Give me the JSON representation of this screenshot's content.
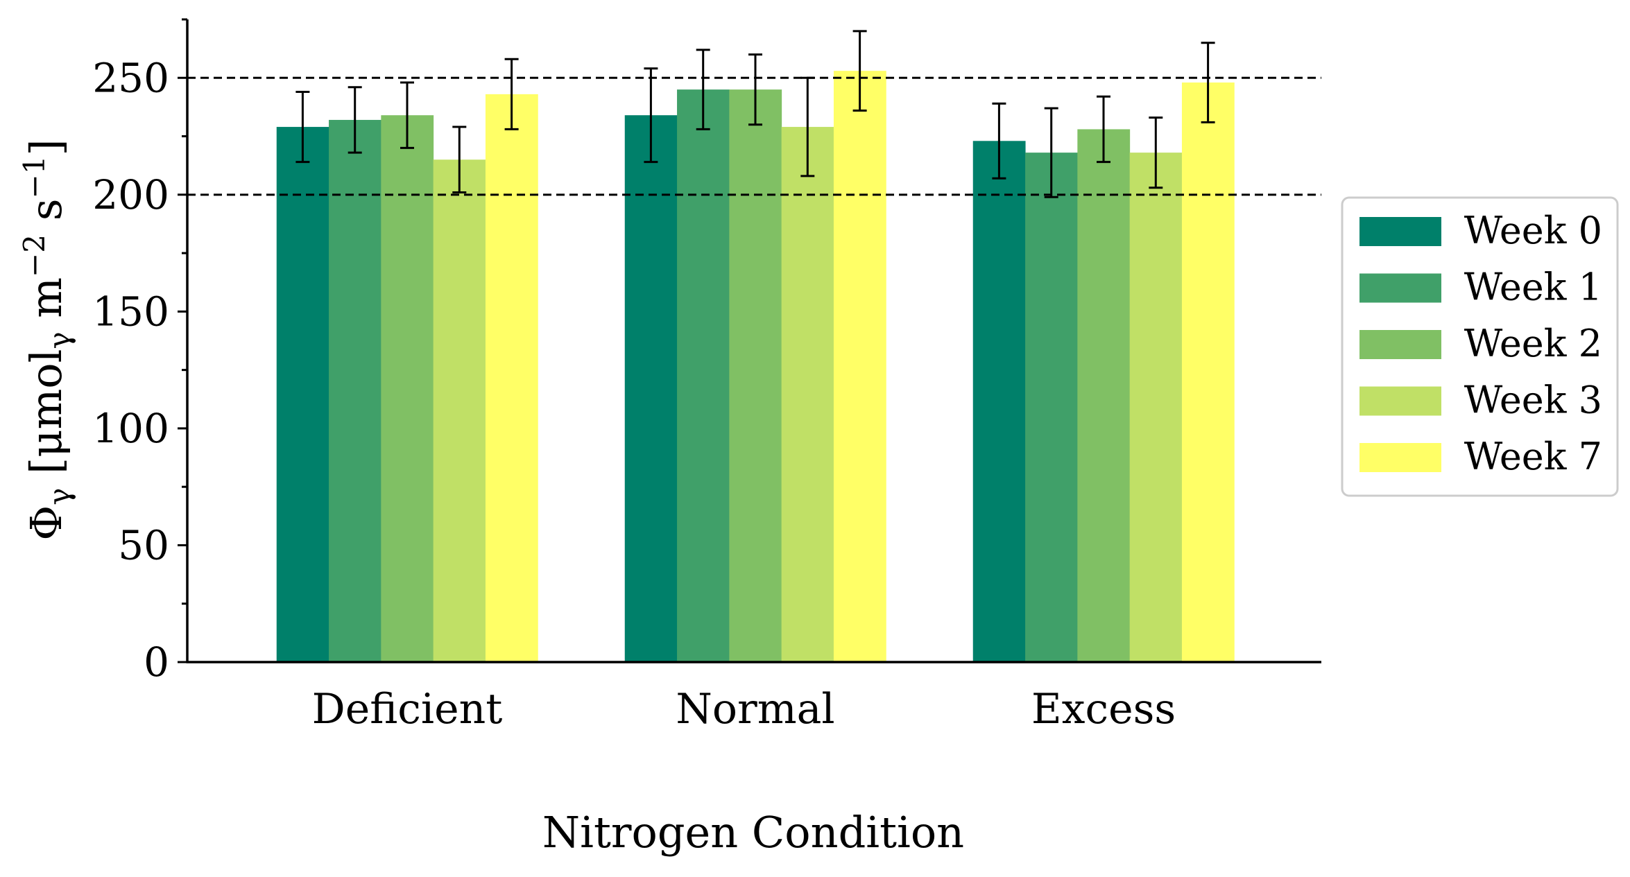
{
  "chart_data": {
    "type": "bar",
    "categories": [
      "Deficient",
      "Normal",
      "Excess"
    ],
    "series": [
      {
        "name": "Week 0",
        "color": "#00806a",
        "values": [
          229,
          234,
          223
        ],
        "errors": [
          15,
          20,
          16
        ]
      },
      {
        "name": "Week 1",
        "color": "#40a069",
        "values": [
          232,
          245,
          218
        ],
        "errors": [
          14,
          17,
          19
        ]
      },
      {
        "name": "Week 2",
        "color": "#80c064",
        "values": [
          234,
          245,
          228
        ],
        "errors": [
          14,
          15,
          14
        ]
      },
      {
        "name": "Week 3",
        "color": "#c0e066",
        "values": [
          215,
          229,
          218
        ],
        "errors": [
          14,
          21,
          15
        ]
      },
      {
        "name": "Week 7",
        "color": "#ffff66",
        "values": [
          243,
          253,
          248
        ],
        "errors": [
          15,
          17,
          17
        ]
      }
    ],
    "xlabel": "Nitrogen Condition",
    "ylabel": "Φγ [μmolγ m−2 s−1]",
    "ylabel_parts": {
      "symbol": "Φ",
      "symbol_sub": "γ",
      "open": " [μmol",
      "unit_sub": "γ",
      "m": " m",
      "m_exp": "−2",
      "s": " s",
      "s_exp": "−1",
      "close": "]"
    },
    "ylim": [
      0,
      275
    ],
    "yticks": [
      0,
      50,
      100,
      150,
      200,
      250
    ],
    "reference_lines": [
      200,
      250
    ],
    "grid": false,
    "legend_position": "right"
  }
}
